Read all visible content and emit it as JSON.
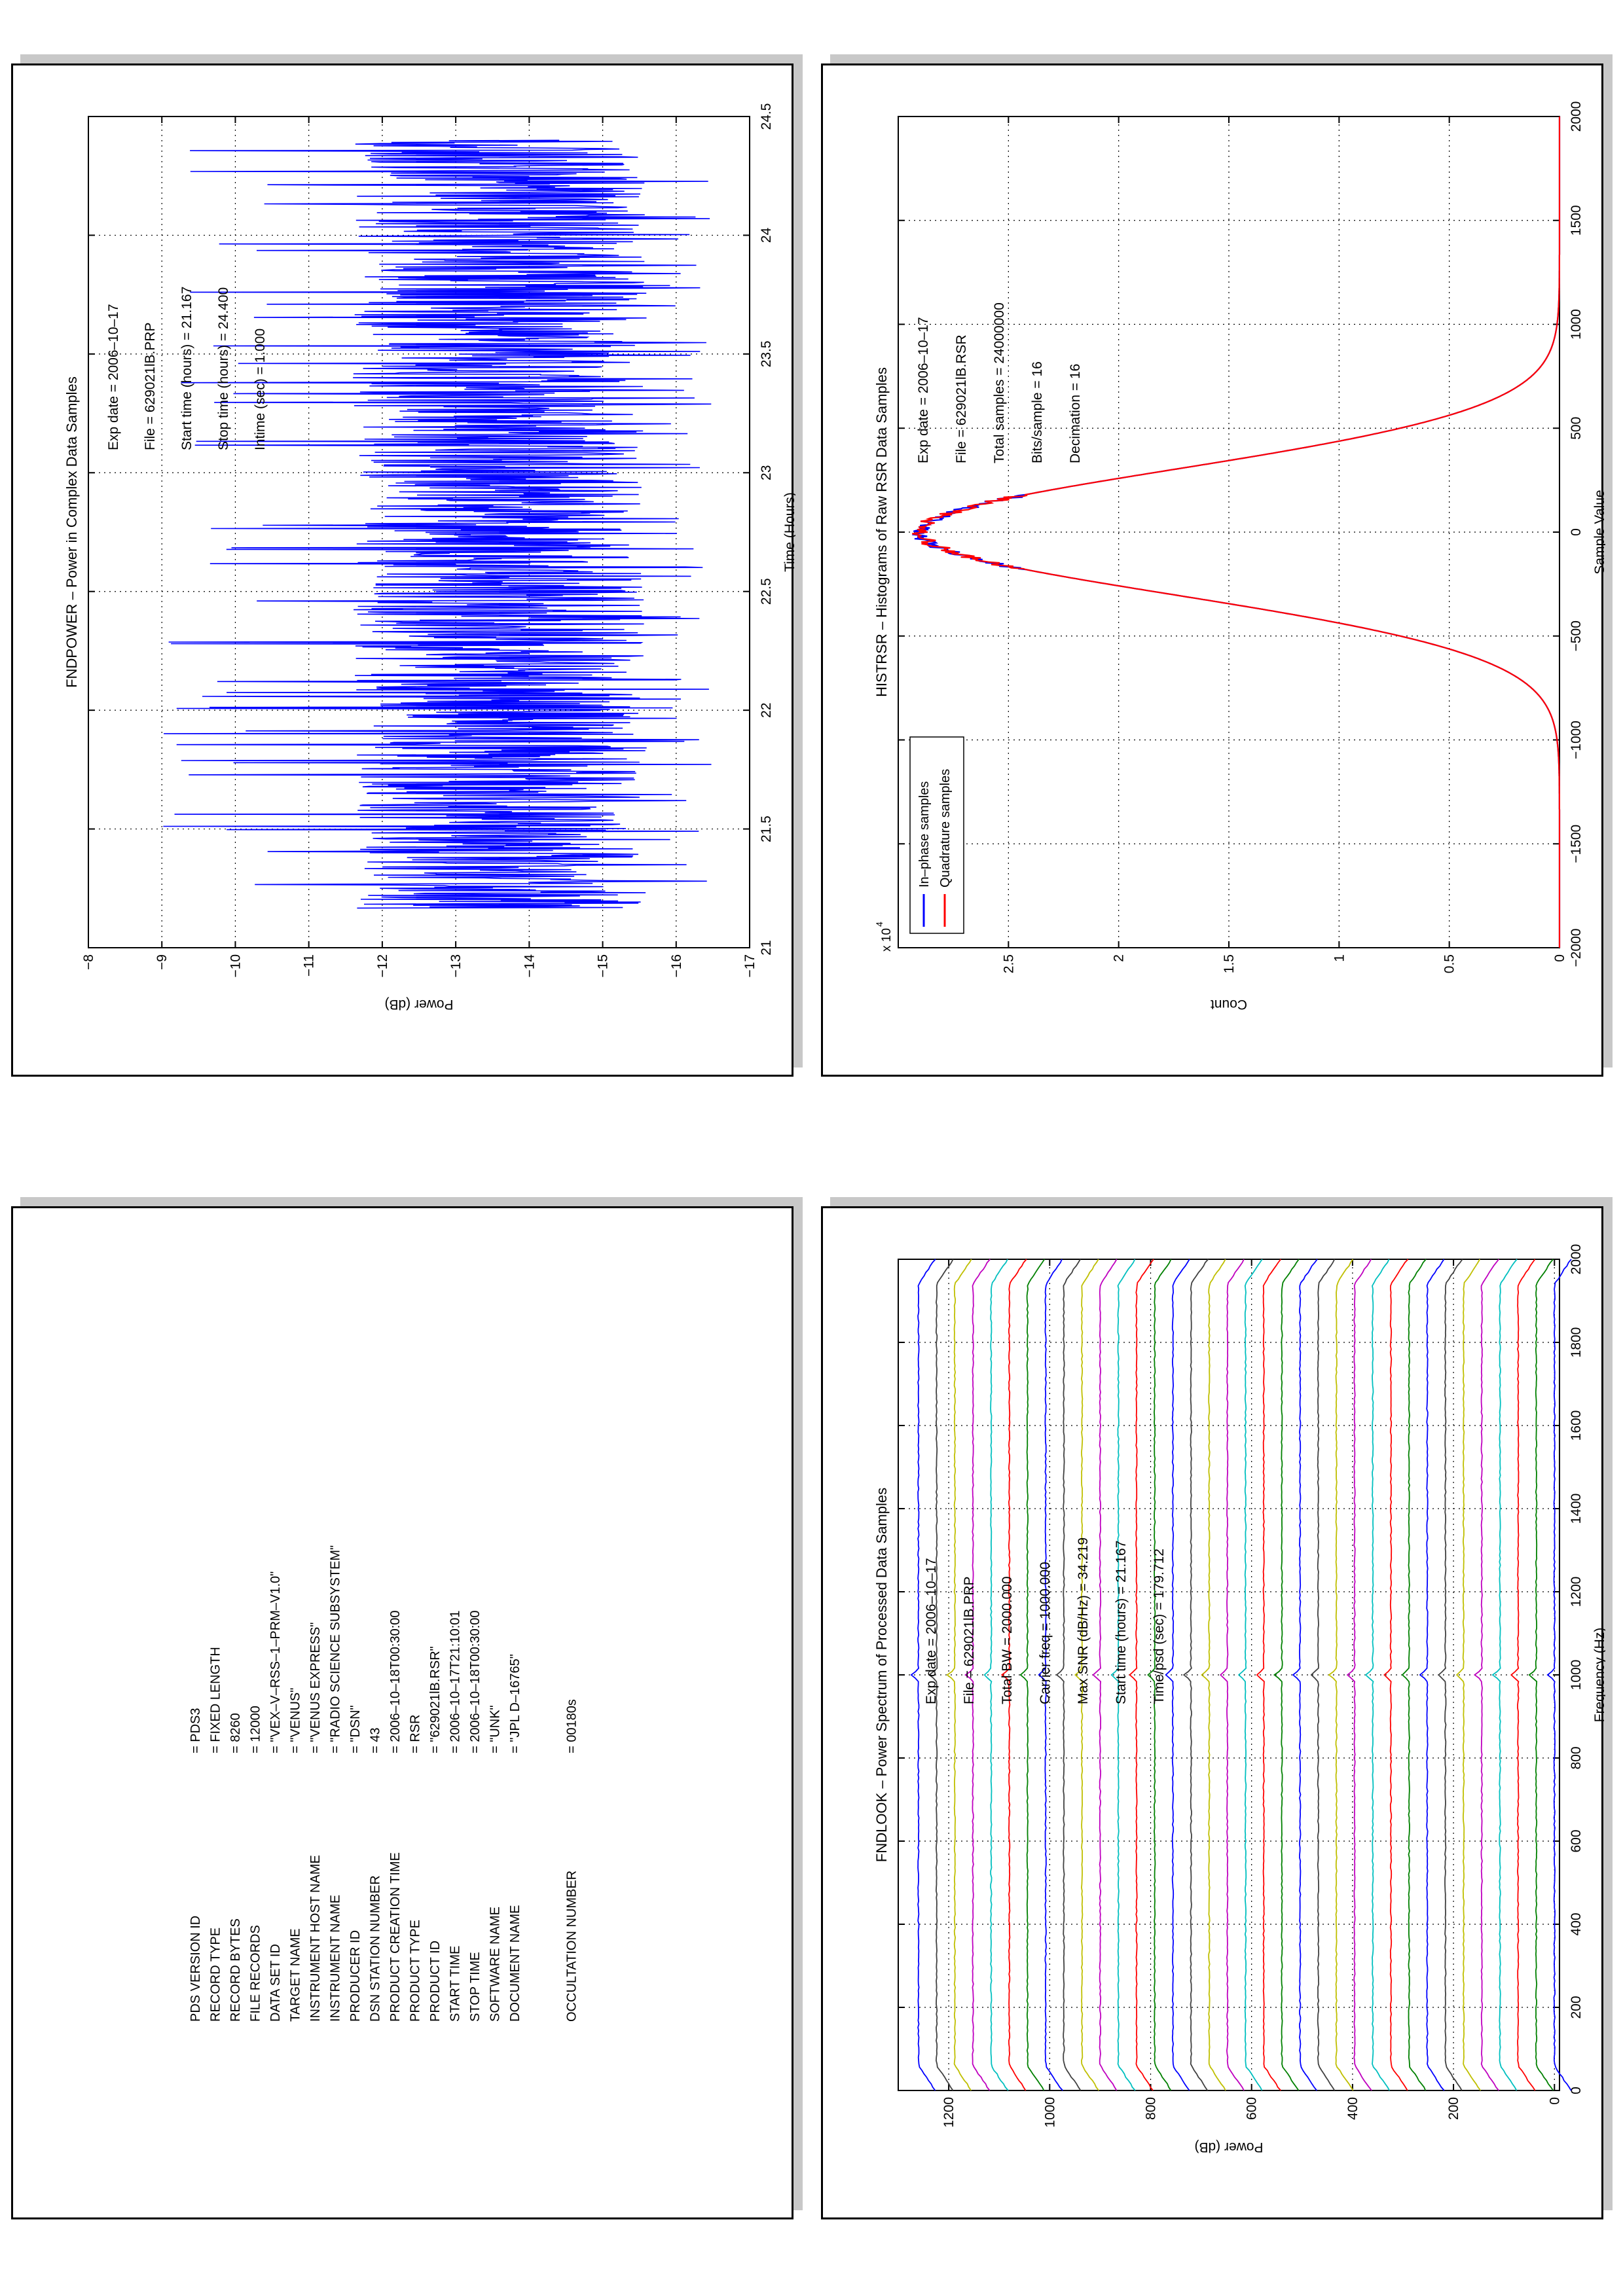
{
  "chart_data": [
    {
      "type": "line",
      "title": "HISTRSR – Histograms of Raw RSR Data Samples",
      "xlabel": "Sample Value",
      "ylabel": "Count",
      "y_multiplier": "x 10",
      "y_multiplier_exp": "4",
      "xlim": [
        -2000,
        2000
      ],
      "ylim": [
        0,
        3
      ],
      "xticks": [
        -2000,
        -1500,
        -1000,
        -500,
        0,
        500,
        1000,
        1500,
        2000
      ],
      "xtick_labels": [
        "−2000",
        "−1500",
        "−1000",
        "−500",
        "0",
        "500",
        "1000",
        "1500",
        "2000"
      ],
      "yticks": [
        0,
        0.5,
        1,
        1.5,
        2,
        2.5
      ],
      "ytick_labels": [
        "0",
        "0.5",
        "1",
        "1.5",
        "2",
        "2.5"
      ],
      "grid": true,
      "legend_position": "top-left",
      "series": [
        {
          "name": "In–phase samples",
          "color": "#0000ff",
          "model": "gaussian",
          "amplitude": 2.9,
          "mean": 0,
          "sigma": 300
        },
        {
          "name": "Quadrature samples",
          "color": "#ff0000",
          "model": "gaussian",
          "amplitude": 2.9,
          "mean": 0,
          "sigma": 300
        }
      ],
      "annotations": [
        "Exp date = 2006–10–17",
        "File = 629021lB.RSR",
        "Total samples =  24000000",
        "Bits/sample    =         16",
        "Decimation     =         16"
      ]
    },
    {
      "type": "line",
      "title": "FNDPOWER – Power in Complex Data Samples",
      "xlabel": "Time (Hours)",
      "ylabel": "Power (dB)",
      "xlim": [
        21,
        24.5
      ],
      "ylim": [
        -17,
        -8
      ],
      "xticks": [
        21,
        21.5,
        22,
        22.5,
        23,
        23.5,
        24,
        24.5
      ],
      "xtick_labels": [
        "21",
        "21.5",
        "22",
        "22.5",
        "23",
        "23.5",
        "24",
        "24.5"
      ],
      "yticks": [
        -17,
        -16,
        -15,
        -14,
        -13,
        -12,
        -11,
        -10,
        -9,
        -8
      ],
      "ytick_labels": [
        "−17",
        "−16",
        "−15",
        "−14",
        "−13",
        "−12",
        "−11",
        "−10",
        "−9",
        "−8"
      ],
      "grid": true,
      "series": [
        {
          "name": "",
          "color": "#0000ff",
          "model": "noise",
          "x_range": [
            21.167,
            24.4
          ],
          "mean": -13.8,
          "low": -16.5,
          "high": -9.0
        }
      ],
      "annotations": [
        "Exp date = 2006–10–17",
        "File = 629021lB.PRP",
        "Start time (hours) = 21.167",
        "Stop time (hours) = 24.400",
        "Intime (sec) =        1.000"
      ]
    },
    {
      "type": "line",
      "title": "FNDLOOK – Power Spectrum of Processed Data Samples",
      "xlabel": "Frequency (Hz)",
      "ylabel": "Power (dB)",
      "xlim": [
        0,
        2000
      ],
      "ylim": [
        -10,
        1300
      ],
      "xticks": [
        0,
        200,
        400,
        600,
        800,
        1000,
        1200,
        1400,
        1600,
        1800,
        2000
      ],
      "xtick_labels": [
        "0",
        "200",
        "400",
        "600",
        "800",
        "1000",
        "1200",
        "1400",
        "1600",
        "1800",
        "2000"
      ],
      "yticks": [
        0,
        200,
        400,
        600,
        800,
        1000,
        1200
      ],
      "ytick_labels": [
        "0",
        "200",
        "400",
        "600",
        "800",
        "1000",
        "1200"
      ],
      "grid": true,
      "series": [
        {
          "name": "",
          "model": "stacked_spectra",
          "count": 36,
          "offset_start": 0,
          "offset_step": 36,
          "peak_frequency": 1000,
          "colors": [
            "#0000ff",
            "#008000",
            "#ff0000",
            "#00bfbf",
            "#bf00bf",
            "#bfbf00",
            "#404040"
          ]
        }
      ],
      "annotations": [
        "Exp date = 2006–10–17",
        "File = 629021lB.PRP",
        "Total BW =      2000.000",
        "Carrier freq =   1000.000",
        "Max SNR (dB/Hz) =    34.219",
        "Start time (hours) =   21.167",
        "Time/psd (sec) =    179.712"
      ]
    }
  ],
  "label_table": {
    "rows": [
      {
        "key": "PDS VERSION ID",
        "value": "=  PDS3"
      },
      {
        "key": "RECORD TYPE",
        "value": "=  FIXED LENGTH"
      },
      {
        "key": "RECORD BYTES",
        "value": "=  8260"
      },
      {
        "key": "FILE RECORDS",
        "value": "=  12000"
      },
      {
        "key": "DATA SET ID",
        "value": "=  \"VEX–V–RSS–1–PRM–V1.0\""
      },
      {
        "key": "TARGET NAME",
        "value": "=  \"VENUS\""
      },
      {
        "key": "INSTRUMENT HOST NAME",
        "value": "=  \"VENUS EXPRESS\""
      },
      {
        "key": "INSTRUMENT NAME",
        "value": "=  \"RADIO SCIENCE SUBSYSTEM\""
      },
      {
        "key": "PRODUCER ID",
        "value": "=  \"DSN\""
      },
      {
        "key": "DSN STATION NUMBER",
        "value": "=  43"
      },
      {
        "key": "PRODUCT CREATION TIME",
        "value": "=  2006–10–18T00:30:00"
      },
      {
        "key": "PRODUCT TYPE",
        "value": "=  RSR"
      },
      {
        "key": "PRODUCT ID",
        "value": "=  \"629021lB.RSR\""
      },
      {
        "key": "START TIME",
        "value": "=  2006–10–17T21:10:01"
      },
      {
        "key": "STOP TIME",
        "value": "=  2006–10–18T00:30:00"
      },
      {
        "key": "SOFTWARE NAME",
        "value": "=  \"UNK\""
      },
      {
        "key": "DOCUMENT NAME",
        "value": "=  \"JPL D–16765\""
      }
    ],
    "occultation_key": "OCCULTATION NUMBER",
    "occultation_value": "=  00180s"
  }
}
